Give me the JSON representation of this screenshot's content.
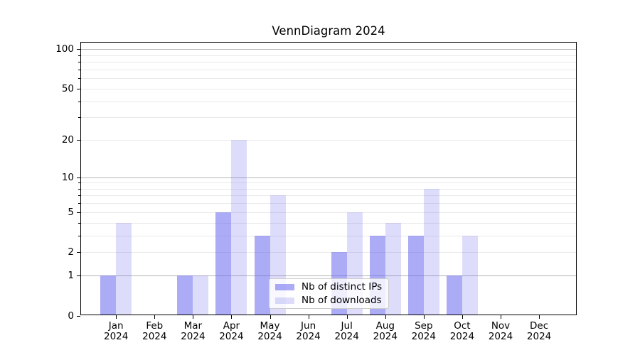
{
  "title": "VennDiagram 2024",
  "legend": {
    "items": [
      {
        "label": "Nb of distinct IPs",
        "color": "rgba(102,102,238,0.55)"
      },
      {
        "label": "Nb of downloads",
        "color": "rgba(102,102,238,0.22)"
      }
    ]
  },
  "axes": {
    "y_tick_labels": [
      "0",
      "1",
      "2",
      "5",
      "10",
      "20",
      "50",
      "100"
    ],
    "y_tick_values": [
      0,
      1,
      2,
      5,
      10,
      20,
      50,
      100
    ]
  },
  "chart_data": {
    "type": "bar",
    "title": "VennDiagram 2024",
    "categories": [
      "Jan 2024",
      "Feb 2024",
      "Mar 2024",
      "Apr 2024",
      "May 2024",
      "Jun 2024",
      "Jul 2024",
      "Aug 2024",
      "Sep 2024",
      "Oct 2024",
      "Nov 2024",
      "Dec 2024"
    ],
    "series": [
      {
        "name": "Nb of distinct IPs",
        "color": "rgba(102,102,238,0.55)",
        "values": [
          1,
          0,
          1,
          5,
          3,
          0,
          2,
          3,
          3,
          1,
          0,
          0
        ]
      },
      {
        "name": "Nb of downloads",
        "color": "rgba(102,102,238,0.22)",
        "values": [
          4,
          0,
          1,
          20,
          7,
          0,
          5,
          4,
          8,
          3,
          0,
          0
        ]
      }
    ],
    "xlabel": "",
    "ylabel": "",
    "yscale": "log1p",
    "ylim": [
      0,
      115
    ],
    "y_ticks": [
      0,
      1,
      2,
      5,
      10,
      20,
      50,
      100
    ],
    "grid": true,
    "legend_position": "lower center"
  }
}
